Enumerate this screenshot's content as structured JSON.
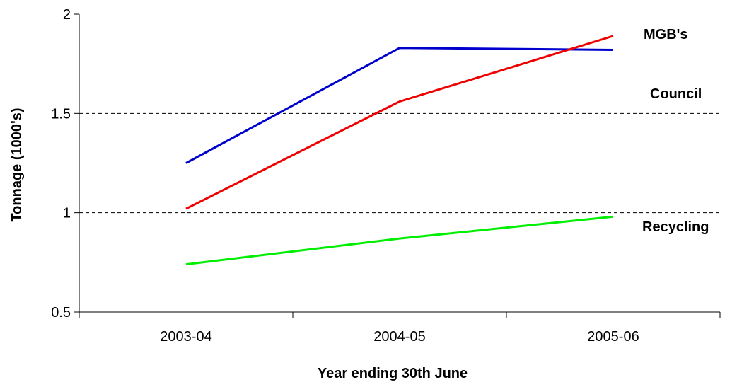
{
  "chart_data": {
    "type": "line",
    "categories": [
      "2003-04",
      "2004-05",
      "2005-06"
    ],
    "series": [
      {
        "name": "Council",
        "color": "#0000cc",
        "values": [
          1.25,
          1.83,
          1.82
        ]
      },
      {
        "name": "MGB's",
        "color": "#ee0000",
        "values": [
          1.02,
          1.56,
          1.89
        ]
      },
      {
        "name": "Recycling",
        "color": "#00ee00",
        "values": [
          0.74,
          0.87,
          0.98
        ]
      }
    ],
    "xlabel": "Year ending 30th June",
    "ylabel": "Tonnage (1000's)",
    "ylim": [
      0.5,
      2
    ],
    "yticks": [
      0.5,
      1,
      1.5,
      2
    ],
    "ytick_labels": [
      "0.5",
      "1",
      "1.5",
      "2"
    ],
    "gridlines": [
      1,
      1.5
    ],
    "legend": "inline-right"
  }
}
